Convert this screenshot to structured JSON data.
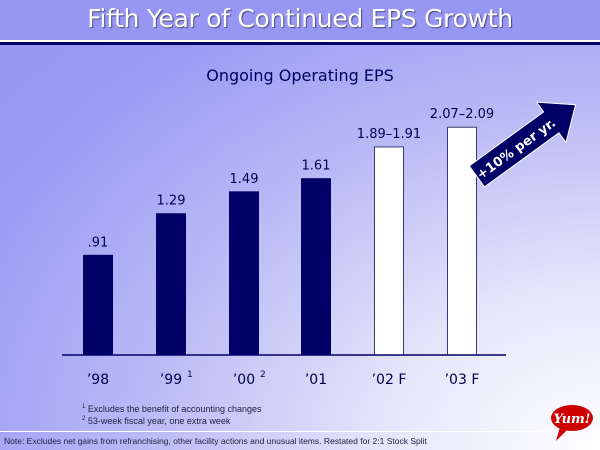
{
  "slide": {
    "title": "Fifth Year of Continued EPS Growth",
    "footnotes": [
      {
        "mark": "1",
        "text": "Excludes the benefit of accounting changes"
      },
      {
        "mark": "2",
        "text": "53-week fiscal year, one extra week"
      }
    ],
    "note": "Note: Excludes net gains from refranchising, other facility actions and unusual items. Restated for 2:1 Stock Split",
    "logo_text": "Yum!"
  },
  "colors": {
    "actual_bar": "#000066",
    "forecast_bar": "#ffffff",
    "arrow": "#000066",
    "logo": "#cc0000"
  },
  "chart_data": {
    "type": "bar",
    "title": "Ongoing Operating EPS",
    "xlabel": "",
    "ylabel": "",
    "ylim": [
      0,
      2.4
    ],
    "grid": false,
    "categories": [
      "’98",
      "’99",
      "’00",
      "’01",
      "’02 F",
      "’03 F"
    ],
    "category_superscripts": [
      "",
      "1",
      "2",
      "",
      "",
      ""
    ],
    "values": [
      0.91,
      1.29,
      1.49,
      1.61,
      1.9,
      2.08
    ],
    "ranges": [
      null,
      null,
      null,
      null,
      [
        1.89,
        1.91
      ],
      [
        2.07,
        2.09
      ]
    ],
    "data_labels": [
      ".91",
      "1.29",
      "1.49",
      "1.61",
      "1.89–1.91",
      "2.07–2.09"
    ],
    "forecast": [
      false,
      false,
      false,
      false,
      true,
      true
    ],
    "annotation": "+10% per yr."
  }
}
